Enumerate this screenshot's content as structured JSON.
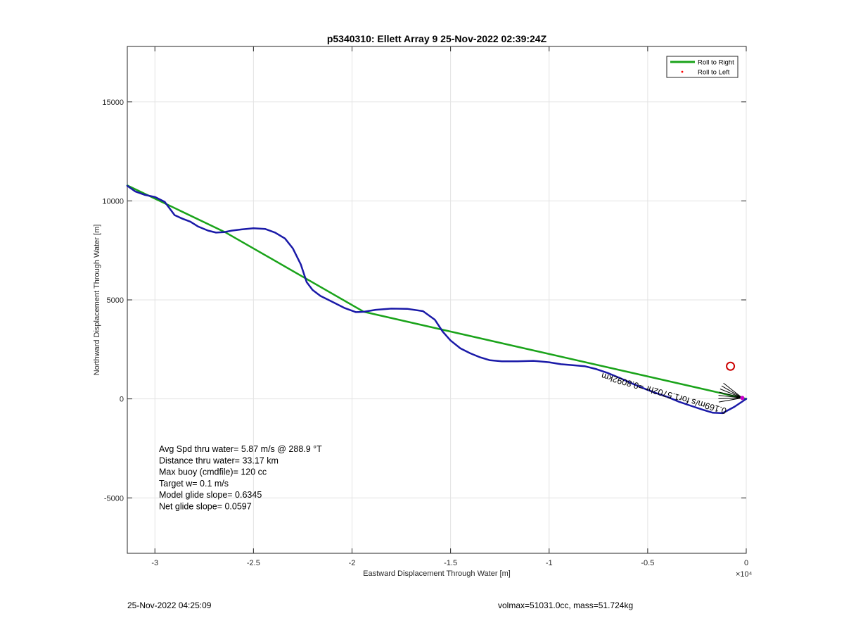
{
  "chart_data": {
    "type": "line",
    "title": "p5340310: Ellett Array 9 25-Nov-2022 02:39:24Z",
    "xlabel": "Eastward Displacement Through Water [m]",
    "ylabel": "Northward Displacement Through Water [m]",
    "x_exponent_label": "×10⁴",
    "xlim": [
      -31400,
      0
    ],
    "ylim": [
      -7800,
      17800
    ],
    "x_ticks": [
      -30000,
      -25000,
      -20000,
      -15000,
      -10000,
      -5000,
      0
    ],
    "x_tick_labels": [
      "-3",
      "-2.5",
      "-2",
      "-1.5",
      "-1",
      "-0.5",
      "0"
    ],
    "y_ticks": [
      -5000,
      0,
      5000,
      10000,
      15000
    ],
    "y_tick_labels": [
      "-5000",
      "0",
      "5000",
      "10000",
      "15000"
    ],
    "grid": true,
    "legend_position": "top-right",
    "legend": [
      {
        "label": "Roll to Right",
        "color": "#1aa31a",
        "marker": "line"
      },
      {
        "label": "Roll to Left",
        "color": "#ff0000",
        "marker": "dot"
      }
    ],
    "series": [
      {
        "name": "Roll to Right",
        "color": "#1aa31a",
        "x": [
          -31400,
          -26400,
          -19400,
          0
        ],
        "y": [
          10780,
          8400,
          4400,
          0
        ]
      },
      {
        "color": "#1a1aa8",
        "x": [
          -31400,
          -31000,
          -30500,
          -30000,
          -29500,
          -29000,
          -28600,
          -28200,
          -27800,
          -27300,
          -26900,
          -26500,
          -26100,
          -25600,
          -25000,
          -24400,
          -23900,
          -23400,
          -23000,
          -22600,
          -22300,
          -22000,
          -21600,
          -21000,
          -20400,
          -19800,
          -19400,
          -18800,
          -18000,
          -17200,
          -16400,
          -15800,
          -15400,
          -15000,
          -14500,
          -14000,
          -13500,
          -13000,
          -12400,
          -11600,
          -10800,
          -10000,
          -9400,
          -8800,
          -8200,
          -7600,
          -7000,
          -6400,
          -5800,
          -5200,
          -4600,
          -4000,
          -3400,
          -2800,
          -2200,
          -1700,
          -1200,
          -600,
          0
        ],
        "y": [
          10760,
          10480,
          10300,
          10200,
          9950,
          9280,
          9100,
          8950,
          8700,
          8500,
          8400,
          8420,
          8500,
          8560,
          8620,
          8580,
          8400,
          8100,
          7600,
          6800,
          5900,
          5500,
          5200,
          4900,
          4600,
          4380,
          4400,
          4500,
          4560,
          4550,
          4430,
          4000,
          3400,
          2950,
          2550,
          2300,
          2100,
          1950,
          1900,
          1900,
          1920,
          1850,
          1750,
          1700,
          1650,
          1500,
          1300,
          1050,
          780,
          530,
          300,
          100,
          -150,
          -350,
          -550,
          -700,
          -720,
          -400,
          0
        ]
      }
    ],
    "annotations": {
      "lines": [
        "Avg Spd thru water=  5.87 m/s @ 288.9 °T",
        "Distance thru water= 33.17 km",
        "Max buoy (cmdfile)= 120 cc",
        "Target w= 0.1 m/s",
        "Model glide slope= 0.6345",
        "Net glide slope= 0.0597"
      ],
      "rotated_label": "0.169m/s for1.5702hr =0.8092km",
      "current_marker": {
        "x": -800,
        "y": 1650,
        "color": "#cc0000"
      },
      "end_marker": {
        "x": -200,
        "y": 50,
        "color": "#cc00cc"
      }
    }
  },
  "footer": {
    "timestamp": "25-Nov-2022 04:25:09",
    "vehicle": "volmax=51031.0cc, mass=51.724kg"
  }
}
